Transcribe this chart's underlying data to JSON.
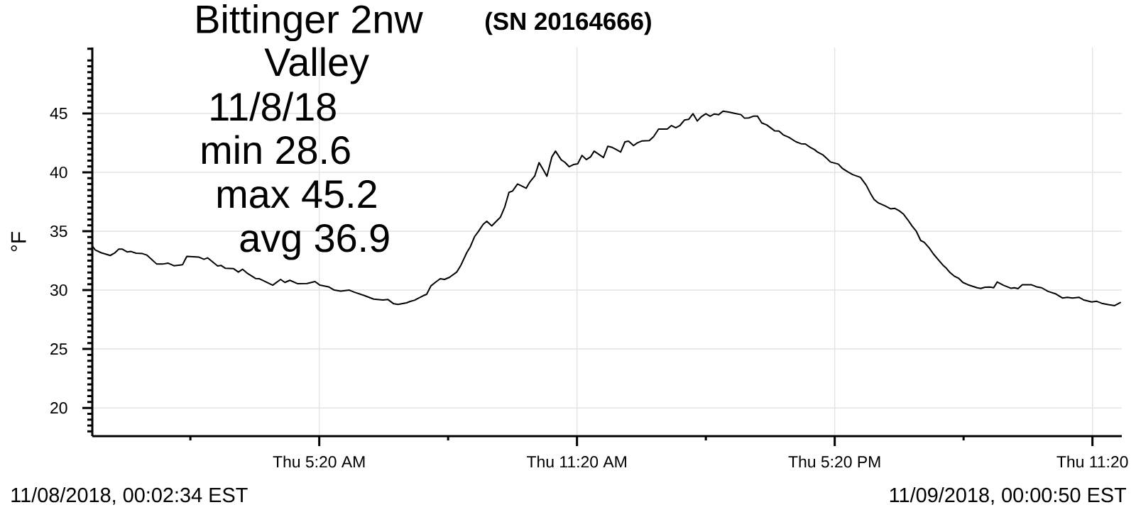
{
  "chart_data": {
    "type": "line",
    "title": "Bittinger 2nw",
    "subtitle": "(SN 20164666)",
    "ylabel": "°F",
    "annotations": [
      "Valley",
      "11/8/18",
      "min 28.6",
      "max 45.2",
      "avg 36.9",
      "11/08/2018, 00:02:34 EST",
      "11/09/2018, 00:00:50 EST"
    ],
    "x": [
      "2018-11-08T00:03",
      "2018-11-08T00:07",
      "2018-11-08T00:15",
      "2018-11-08T00:28",
      "2018-11-08T00:34",
      "2018-11-08T00:40",
      "2018-11-08T00:45",
      "2018-11-08T00:52",
      "2018-11-08T00:57",
      "2018-11-08T01:04",
      "2018-11-08T01:13",
      "2018-11-08T01:19",
      "2018-11-08T01:33",
      "2018-11-08T01:41",
      "2018-11-08T01:49",
      "2018-11-08T01:57",
      "2018-11-08T02:09",
      "2018-11-08T02:15",
      "2018-11-08T02:32",
      "2018-11-08T02:39",
      "2018-11-08T02:44",
      "2018-11-08T02:58",
      "2018-11-08T03:03",
      "2018-11-08T03:09",
      "2018-11-08T03:20",
      "2018-11-08T03:27",
      "2018-11-08T03:33",
      "2018-11-08T03:40",
      "2018-11-08T03:51",
      "2018-11-08T03:56",
      "2018-11-08T04:15",
      "2018-11-08T04:26",
      "2018-11-08T04:32",
      "2018-11-08T04:39",
      "2018-11-08T04:50",
      "2018-11-08T05:03",
      "2018-11-08T05:14",
      "2018-11-08T05:21",
      "2018-11-08T05:33",
      "2018-11-08T05:41",
      "2018-11-08T05:50",
      "2018-11-08T06:02",
      "2018-11-08T06:10",
      "2018-11-08T06:23",
      "2018-11-08T06:36",
      "2018-11-08T06:49",
      "2018-11-08T06:56",
      "2018-11-08T07:04",
      "2018-11-08T07:10",
      "2018-11-08T07:22",
      "2018-11-08T07:27",
      "2018-11-08T07:33",
      "2018-11-08T07:45",
      "2018-11-08T07:50",
      "2018-11-08T07:56",
      "2018-11-08T08:02",
      "2018-11-08T08:09",
      "2018-11-08T08:15",
      "2018-11-08T08:22",
      "2018-11-08T08:32",
      "2018-11-08T08:38",
      "2018-11-08T08:46",
      "2018-11-08T08:51",
      "2018-11-08T08:57",
      "2018-11-08T09:02",
      "2018-11-08T09:09",
      "2018-11-08T09:14",
      "2018-11-08T09:21",
      "2018-11-08T09:33",
      "2018-11-08T09:39",
      "2018-11-08T09:45",
      "2018-11-08T09:50",
      "2018-11-08T09:57",
      "2018-11-08T10:09",
      "2018-11-08T10:14",
      "2018-11-08T10:21",
      "2018-11-08T10:27",
      "2018-11-08T10:32",
      "2018-11-08T10:38",
      "2018-11-08T10:45",
      "2018-11-08T10:50",
      "2018-11-08T10:58",
      "2018-11-08T11:03",
      "2018-11-08T11:09",
      "2018-11-08T11:15",
      "2018-11-08T11:21",
      "2018-11-08T11:27",
      "2018-11-08T11:33",
      "2018-11-08T11:39",
      "2018-11-08T11:44",
      "2018-11-08T11:57",
      "2018-11-08T12:03",
      "2018-11-08T12:09",
      "2018-11-08T12:14",
      "2018-11-08T12:21",
      "2018-11-08T12:27",
      "2018-11-08T12:32",
      "2018-11-08T12:39",
      "2018-11-08T12:44",
      "2018-11-08T12:51",
      "2018-11-08T13:01",
      "2018-11-08T13:07",
      "2018-11-08T13:14",
      "2018-11-08T13:26",
      "2018-11-08T13:32",
      "2018-11-08T13:38",
      "2018-11-08T13:44",
      "2018-11-08T13:50",
      "2018-11-08T13:56",
      "2018-11-08T14:02",
      "2018-11-08T14:08",
      "2018-11-08T14:14",
      "2018-11-08T14:20",
      "2018-11-08T14:26",
      "2018-11-08T14:32",
      "2018-11-08T14:38",
      "2018-11-08T14:44",
      "2018-11-08T14:52",
      "2018-11-08T15:01",
      "2018-11-08T15:09",
      "2018-11-08T15:14",
      "2018-11-08T15:20",
      "2018-11-08T15:27",
      "2018-11-08T15:32",
      "2018-11-08T15:38",
      "2018-11-08T15:45",
      "2018-11-08T15:56",
      "2018-11-08T16:02",
      "2018-11-08T16:08",
      "2018-11-08T16:16",
      "2018-11-08T16:26",
      "2018-11-08T16:33",
      "2018-11-08T16:39",
      "2018-11-08T16:46",
      "2018-11-08T16:52",
      "2018-11-08T16:56",
      "2018-11-08T17:03",
      "2018-11-08T17:09",
      "2018-11-08T17:14",
      "2018-11-08T17:25",
      "2018-11-08T17:31",
      "2018-11-08T17:38",
      "2018-11-08T17:45",
      "2018-11-08T17:56",
      "2018-11-08T18:04",
      "2018-11-08T18:10",
      "2018-11-08T18:15",
      "2018-11-08T18:21",
      "2018-11-08T18:30",
      "2018-11-08T18:38",
      "2018-11-08T18:44",
      "2018-11-08T18:50",
      "2018-11-08T18:56",
      "2018-11-08T19:03",
      "2018-11-08T19:08",
      "2018-11-08T19:14",
      "2018-11-08T19:20",
      "2018-11-08T19:25",
      "2018-11-08T19:32",
      "2018-11-08T19:38",
      "2018-11-08T19:45",
      "2018-11-08T19:51",
      "2018-11-08T19:56",
      "2018-11-08T20:01",
      "2018-11-08T20:07",
      "2018-11-08T20:13",
      "2018-11-08T20:19",
      "2018-11-08T20:26",
      "2018-11-08T20:32",
      "2018-11-08T20:39",
      "2018-11-08T20:44",
      "2018-11-08T20:50",
      "2018-11-08T20:57",
      "2018-11-08T21:02",
      "2018-11-08T21:07",
      "2018-11-08T21:16",
      "2018-11-08T21:26",
      "2018-11-08T21:31",
      "2018-11-08T21:36",
      "2018-11-08T21:42",
      "2018-11-08T21:55",
      "2018-11-08T22:02",
      "2018-11-08T22:09",
      "2018-11-08T22:18",
      "2018-11-08T22:29",
      "2018-11-08T22:38",
      "2018-11-08T22:45",
      "2018-11-08T22:52",
      "2018-11-08T23:01",
      "2018-11-08T23:08",
      "2018-11-08T23:19",
      "2018-11-08T23:26",
      "2018-11-08T23:33",
      "2018-11-08T23:42",
      "2018-11-08T23:51",
      "2018-11-08T23:59"
    ],
    "values": [
      33.74,
      33.42,
      33.18,
      32.94,
      33.14,
      33.48,
      33.48,
      33.24,
      33.28,
      33.14,
      33.1,
      32.98,
      32.21,
      32.21,
      32.29,
      32.07,
      32.15,
      32.86,
      32.8,
      32.62,
      32.74,
      32.05,
      32.09,
      31.85,
      31.83,
      31.53,
      31.77,
      31.41,
      30.99,
      30.97,
      30.42,
      30.91,
      30.65,
      30.83,
      30.54,
      30.56,
      30.73,
      30.42,
      30.28,
      30.0,
      29.92,
      30.0,
      29.8,
      29.54,
      29.24,
      29.16,
      29.2,
      28.84,
      28.78,
      28.92,
      29.04,
      29.14,
      29.52,
      29.64,
      30.36,
      30.65,
      30.97,
      30.91,
      31.09,
      31.53,
      32.13,
      33.18,
      33.68,
      34.55,
      34.95,
      35.59,
      35.85,
      35.45,
      36.19,
      37.04,
      38.3,
      38.41,
      39.01,
      38.65,
      39.17,
      39.69,
      40.82,
      40.32,
      39.67,
      41.32,
      41.8,
      41.06,
      40.86,
      40.48,
      40.66,
      40.72,
      41.44,
      41.08,
      41.32,
      41.8,
      41.26,
      42.21,
      42.12,
      41.96,
      41.72,
      42.59,
      42.65,
      42.27,
      42.49,
      42.67,
      42.69,
      43.03,
      43.67,
      43.67,
      43.97,
      43.79,
      43.99,
      44.44,
      44.5,
      44.98,
      44.36,
      44.74,
      44.98,
      44.76,
      44.96,
      44.9,
      45.2,
      45.12,
      45.0,
      44.9,
      44.6,
      44.62,
      44.78,
      44.78,
      44.2,
      44.03,
      43.53,
      43.51,
      43.19,
      42.97,
      42.59,
      42.43,
      42.41,
      42.12,
      41.92,
      41.72,
      41.5,
      41.18,
      40.88,
      40.7,
      40.32,
      40.05,
      39.81,
      39.57,
      38.91,
      38.2,
      37.7,
      37.4,
      37.16,
      36.9,
      36.94,
      36.74,
      36.46,
      35.89,
      35.45,
      34.99,
      34.22,
      34.06,
      33.58,
      33.06,
      32.55,
      32.13,
      31.85,
      31.49,
      31.19,
      31.01,
      30.65,
      30.46,
      30.34,
      30.2,
      30.14,
      30.24,
      30.26,
      30.2,
      30.69,
      30.4,
      30.16,
      30.2,
      30.12,
      30.46,
      30.45,
      30.28,
      30.2,
      29.89,
      29.67,
      29.33,
      29.39,
      29.33,
      29.39,
      29.16,
      29.0,
      29.05,
      28.88,
      28.77,
      28.68,
      28.95
    ],
    "color": "#000000",
    "xlim": [
      "2018-11-08T00:03",
      "2018-11-09T00:01"
    ],
    "ylim": [
      17.6,
      50.6
    ],
    "xticks": [
      {
        "value": "2018-11-08T02:20",
        "label": null
      },
      {
        "value": "2018-11-08T05:20",
        "label": "Thu 5:20 AM"
      },
      {
        "value": "2018-11-08T08:20",
        "label": null
      },
      {
        "value": "2018-11-08T11:20",
        "label": "Thu 11:20 AM"
      },
      {
        "value": "2018-11-08T14:20",
        "label": null
      },
      {
        "value": "2018-11-08T17:20",
        "label": "Thu 5:20 PM"
      },
      {
        "value": "2018-11-08T20:20",
        "label": null
      },
      {
        "value": "2018-11-08T23:20",
        "label": "Thu 11:20"
      }
    ],
    "yticks": [
      20,
      25,
      30,
      35,
      40,
      45
    ],
    "grid": true
  }
}
